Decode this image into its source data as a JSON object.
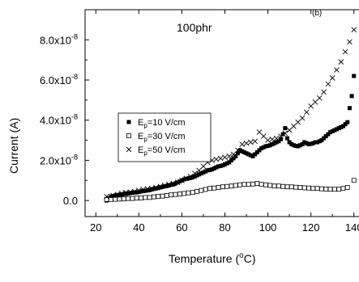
{
  "chart_data": {
    "type": "scatter",
    "annotation": "100phr",
    "panel_label": "(b)",
    "xlabel_main": "Temperature (",
    "xlabel_unit": "C)",
    "xlabel_degree": "o",
    "ylabel": "Current (A)",
    "xlim": [
      15,
      145
    ],
    "ylim": [
      -8e-09,
      9.5e-08
    ],
    "x_ticks": [
      20,
      40,
      60,
      80,
      100,
      120,
      140
    ],
    "x_tick_labels": [
      "20",
      "40",
      "60",
      "80",
      "100",
      "120",
      "140"
    ],
    "y_ticks": [
      0,
      2e-08,
      4e-08,
      6e-08,
      8e-08
    ],
    "y_tick_labels": [
      {
        "mant": "0.0",
        "exp": ""
      },
      {
        "mant": "2.0x10",
        "exp": "-8"
      },
      {
        "mant": "4.0x10",
        "exp": "-8"
      },
      {
        "mant": "6.0x10",
        "exp": "-8"
      },
      {
        "mant": "8.0x10",
        "exp": "-8"
      }
    ],
    "legend_position": "center-left",
    "series": [
      {
        "name": "Ep=10 V/cm",
        "legend_parts": [
          "E",
          "p",
          "=10 V/cm"
        ],
        "marker": "filled-square",
        "x": [
          25,
          26,
          27,
          28,
          29,
          30,
          31,
          32,
          33,
          34,
          35,
          36,
          37,
          38,
          39,
          40,
          41,
          42,
          43,
          44,
          45,
          46,
          47,
          48,
          49,
          50,
          51,
          52,
          53,
          54,
          55,
          56,
          57,
          58,
          59,
          60,
          61,
          62,
          63,
          64,
          65,
          66,
          67,
          68,
          69,
          70,
          71,
          72,
          73,
          74,
          75,
          76,
          77,
          78,
          79,
          80,
          81,
          82,
          83,
          84,
          85,
          86,
          87,
          88,
          89,
          90,
          91,
          92,
          93,
          94,
          95,
          96,
          97,
          98,
          99,
          100,
          101,
          102,
          103,
          104,
          105,
          106,
          107,
          108,
          109,
          110,
          111,
          112,
          113,
          114,
          115,
          116,
          117,
          118,
          119,
          120,
          121,
          122,
          123,
          124,
          125,
          126,
          127,
          128,
          129,
          130,
          131,
          132,
          133,
          134,
          135,
          136,
          137,
          138,
          139,
          140
        ],
        "y": [
          0.0,
          1e-09,
          2e-09,
          2.2e-09,
          2.5e-09,
          2.7e-09,
          2.8e-09,
          3e-09,
          3.2e-09,
          3.3e-09,
          3.5e-09,
          3.7e-09,
          3.8e-09,
          4e-09,
          4e-09,
          4.2e-09,
          4.5e-09,
          4.7e-09,
          4.8e-09,
          5e-09,
          5.2e-09,
          5.5e-09,
          5.8e-09,
          6e-09,
          6.2e-09,
          6.5e-09,
          6.8e-09,
          7e-09,
          7.2e-09,
          7.5e-09,
          7.8e-09,
          8e-09,
          8.5e-09,
          9e-09,
          9.5e-09,
          1e-08,
          1.05e-08,
          1.08e-08,
          1.1e-08,
          1.12e-08,
          1.15e-08,
          1.2e-08,
          1.25e-08,
          1.3e-08,
          1.35e-08,
          1.4e-08,
          1.45e-08,
          1.5e-08,
          1.52e-08,
          1.55e-08,
          1.6e-08,
          1.65e-08,
          1.7e-08,
          1.72e-08,
          1.75e-08,
          1.8e-08,
          1.85e-08,
          1.9e-08,
          2e-08,
          2.1e-08,
          2.2e-08,
          2.35e-08,
          2.5e-08,
          2.45e-08,
          2.4e-08,
          2.35e-08,
          2.3e-08,
          2.25e-08,
          2.2e-08,
          2.3e-08,
          2.4e-08,
          2.5e-08,
          2.6e-08,
          2.65e-08,
          2.7e-08,
          2.72e-08,
          2.75e-08,
          2.8e-08,
          2.85e-08,
          2.9e-08,
          2.95e-08,
          3.05e-08,
          3.3e-08,
          3.6e-08,
          3.1e-08,
          2.9e-08,
          2.8e-08,
          2.75e-08,
          2.72e-08,
          2.7e-08,
          2.75e-08,
          2.8e-08,
          2.9e-08,
          2.85e-08,
          2.8e-08,
          2.82e-08,
          2.85e-08,
          2.9e-08,
          2.9e-08,
          2.95e-08,
          3e-08,
          3.1e-08,
          3.2e-08,
          3.3e-08,
          3.4e-08,
          3.45e-08,
          3.5e-08,
          3.55e-08,
          3.6e-08,
          3.65e-08,
          3.7e-08,
          3.8e-08,
          3.9e-08,
          4.6e-08,
          5.2e-08,
          6.2e-08
        ]
      },
      {
        "name": "Ep=30 V/cm",
        "legend_parts": [
          "E",
          "p",
          "=30 V/cm"
        ],
        "marker": "open-square",
        "x": [
          25,
          27,
          29,
          31,
          33,
          35,
          37,
          39,
          41,
          43,
          45,
          47,
          49,
          51,
          53,
          55,
          57,
          59,
          61,
          63,
          65,
          67,
          69,
          71,
          73,
          75,
          77,
          79,
          81,
          83,
          85,
          87,
          89,
          91,
          93,
          95,
          97,
          99,
          101,
          103,
          105,
          107,
          109,
          111,
          113,
          115,
          117,
          119,
          121,
          123,
          125,
          127,
          129,
          131,
          133,
          135,
          137,
          140
        ],
        "y": [
          5e-10,
          5e-10,
          6e-10,
          7e-10,
          8e-10,
          1e-09,
          1e-09,
          1.2e-09,
          1.2e-09,
          1.5e-09,
          1.5e-09,
          1.8e-09,
          2e-09,
          2.2e-09,
          2.5e-09,
          2.8e-09,
          3e-09,
          3.2e-09,
          3.5e-09,
          3.8e-09,
          4e-09,
          4.5e-09,
          5e-09,
          5.5e-09,
          6e-09,
          6.2e-09,
          6.5e-09,
          6.8e-09,
          7e-09,
          7.2e-09,
          7.5e-09,
          7.8e-09,
          8e-09,
          8e-09,
          8.2e-09,
          8.5e-09,
          8e-09,
          7.8e-09,
          7.5e-09,
          7.2e-09,
          7.2e-09,
          7e-09,
          6.8e-09,
          6.8e-09,
          6.6e-09,
          6.5e-09,
          6.3e-09,
          6.2e-09,
          6e-09,
          6e-09,
          5.8e-09,
          5.7e-09,
          5.6e-09,
          5.6e-09,
          5.6e-09,
          6e-09,
          6.5e-09,
          1e-08
        ]
      },
      {
        "name": "Ep=50 V/cm",
        "legend_parts": [
          "E",
          "p",
          "=50 V/cm"
        ],
        "marker": "x",
        "x": [
          25,
          28,
          30,
          32,
          34,
          36,
          38,
          40,
          42,
          44,
          46,
          48,
          50,
          52,
          54,
          56,
          58,
          60,
          62,
          64,
          66,
          68,
          70,
          72,
          74,
          76,
          78,
          80,
          82,
          84,
          86,
          88,
          90,
          92,
          94,
          96,
          98,
          100,
          102,
          104,
          106,
          108,
          110,
          112,
          114,
          116,
          118,
          120,
          122,
          124,
          126,
          128,
          130,
          132,
          134,
          136,
          138,
          140
        ],
        "y": [
          2e-09,
          2.5e-09,
          3e-09,
          3.5e-09,
          4e-09,
          4.2e-09,
          4.5e-09,
          5e-09,
          5.5e-09,
          5.8e-09,
          6e-09,
          6.5e-09,
          7e-09,
          7.5e-09,
          8e-09,
          8.5e-09,
          9e-09,
          1e-08,
          1.1e-08,
          1.2e-08,
          1.35e-08,
          1.5e-08,
          1.7e-08,
          1.9e-08,
          2e-08,
          2.05e-08,
          2.1e-08,
          2.15e-08,
          2.2e-08,
          2.3e-08,
          2.5e-08,
          2.8e-08,
          2.85e-08,
          2.9e-08,
          2.95e-08,
          3.4e-08,
          3.2e-08,
          3e-08,
          3.05e-08,
          3.1e-08,
          3.2e-08,
          3.35e-08,
          3.5e-08,
          3.7e-08,
          3.9e-08,
          4.1e-08,
          4.4e-08,
          4.7e-08,
          4.9e-08,
          5.1e-08,
          5.4e-08,
          5.8e-08,
          6.1e-08,
          6.5e-08,
          6.9e-08,
          7.4e-08,
          7.9e-08,
          8.5e-08
        ]
      }
    ]
  }
}
